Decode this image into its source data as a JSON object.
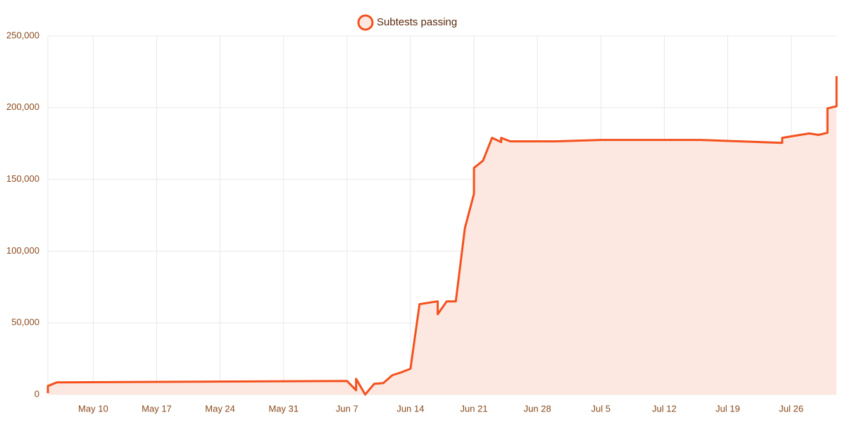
{
  "chart_data": {
    "type": "line",
    "x": [
      "May 5",
      "May 5",
      "May 6",
      "Jun 7",
      "Jun 8",
      "Jun 8",
      "Jun 9",
      "Jun 10",
      "Jun 11",
      "Jun 12",
      "Jun 13",
      "Jun 14",
      "Jun 15",
      "Jun 17",
      "Jun 17",
      "Jun 18",
      "Jun 19",
      "Jun 20",
      "Jun 21",
      "Jun 21",
      "Jun 22",
      "Jun 23",
      "Jun 24",
      "Jun 24",
      "Jun 25",
      "Jun 30",
      "Jul 5",
      "Jul 16",
      "Jul 25",
      "Jul 25",
      "Jul 28",
      "Jul 29",
      "Jul 30",
      "Jul 30",
      "Jul 31",
      "Jul 31"
    ],
    "series": [
      {
        "name": "Subtests passing",
        "color": "#f4511e",
        "fill": "#fde8e1",
        "values": [
          1000,
          6000,
          8500,
          9500,
          3000,
          11000,
          0,
          7500,
          8000,
          13500,
          15500,
          18000,
          63000,
          65000,
          56000,
          65000,
          65000,
          116000,
          140000,
          158000,
          163000,
          179000,
          176000,
          179000,
          176500,
          176500,
          177500,
          177500,
          175500,
          179000,
          182000,
          181000,
          182500,
          199500,
          201000,
          222000
        ]
      }
    ],
    "xlim": [
      "May 5",
      "Jul 31"
    ],
    "xticks": [
      "May 10",
      "May 17",
      "May 24",
      "May 31",
      "Jun 7",
      "Jun 14",
      "Jun 21",
      "Jun 28",
      "Jul 5",
      "Jul 12",
      "Jul 19",
      "Jul 26"
    ],
    "ylim": [
      0,
      250000
    ],
    "yticks": [
      0,
      {
        "value": 50000,
        "label": "50,000"
      },
      {
        "value": 100000,
        "label": "100,000"
      },
      {
        "value": 150000,
        "label": "150,000"
      },
      {
        "value": 200000,
        "label": "200,000"
      },
      {
        "value": 250000,
        "label": "250,000"
      }
    ],
    "grid": true,
    "legend": "top"
  }
}
